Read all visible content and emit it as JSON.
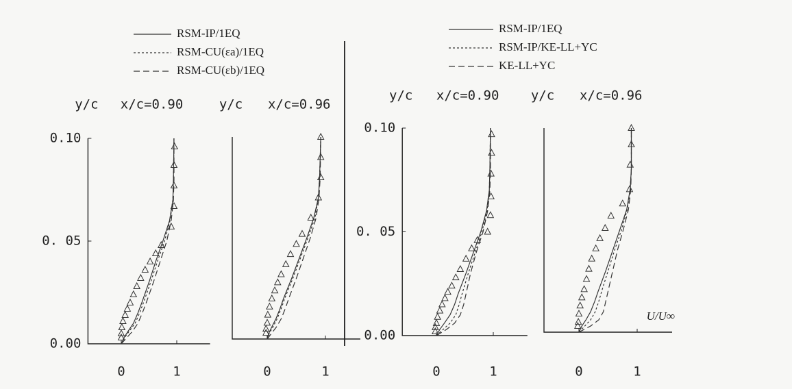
{
  "chart_data": [
    {
      "type": "line",
      "xlim": [
        -0.6,
        1.6
      ],
      "xticks": [
        0,
        1
      ],
      "ylim": [
        0,
        0.1
      ],
      "yticks": [
        {
          "value": 0,
          "label": "0.00"
        },
        {
          "value": 0.05,
          "label": "0. 05"
        },
        {
          "value": 0.1,
          "label": "0.10"
        }
      ],
      "color": "#333",
      "series": [
        {
          "name": "RSM-IP/1EQ",
          "dash": "solid"
        },
        {
          "name": "RSM-CU(εa)/1EQ",
          "dash": "dotted"
        },
        {
          "name": "RSM-CU(εb)/1EQ",
          "dash": "dashed"
        }
      ],
      "panels": [
        {
          "ylabel": "y/c",
          "title": "x/c=0.90",
          "y": [
            0,
            0.003,
            0.006,
            0.01,
            0.015,
            0.02,
            0.03,
            0.04,
            0.05,
            0.06,
            0.07,
            0.08,
            0.1
          ],
          "lines": [
            [
              0,
              0.05,
              0.12,
              0.22,
              0.3,
              0.37,
              0.5,
              0.62,
              0.75,
              0.87,
              0.93,
              0.94,
              0.95
            ],
            [
              0,
              0.06,
              0.14,
              0.25,
              0.33,
              0.4,
              0.53,
              0.65,
              0.78,
              0.88,
              0.93,
              0.94,
              0.95
            ],
            [
              0,
              0.1,
              0.2,
              0.3,
              0.38,
              0.45,
              0.58,
              0.7,
              0.82,
              0.9,
              0.94,
              0.95,
              0.95
            ]
          ],
          "markers": {
            "x": [
              0.96,
              0.95,
              0.95,
              0.95,
              0.9,
              0.72,
              0.62,
              0.52,
              0.43,
              0.35,
              0.28,
              0.22,
              0.16,
              0.11,
              0.07,
              0.03,
              0.01,
              0,
              0
            ],
            "y": [
              0.096,
              0.087,
              0.077,
              0.067,
              0.057,
              0.048,
              0.044,
              0.04,
              0.036,
              0.032,
              0.028,
              0.024,
              0.02,
              0.017,
              0.014,
              0.011,
              0.008,
              0.005,
              0.003
            ]
          }
        },
        {
          "ylabel": "y/c",
          "title": "x/c=0.96",
          "y": [
            0,
            0.003,
            0.006,
            0.01,
            0.015,
            0.02,
            0.03,
            0.04,
            0.05,
            0.06,
            0.07,
            0.08,
            0.1
          ],
          "lines": [
            [
              0,
              0.03,
              0.08,
              0.15,
              0.22,
              0.28,
              0.42,
              0.55,
              0.68,
              0.8,
              0.88,
              0.9,
              0.92
            ],
            [
              0,
              0.04,
              0.1,
              0.17,
              0.24,
              0.3,
              0.44,
              0.57,
              0.7,
              0.82,
              0.88,
              0.9,
              0.92
            ],
            [
              0,
              0.08,
              0.16,
              0.24,
              0.31,
              0.37,
              0.5,
              0.62,
              0.74,
              0.84,
              0.89,
              0.91,
              0.92
            ]
          ],
          "markers": {
            "x": [
              0.92,
              0.92,
              0.92,
              0.88,
              0.75,
              0.6,
              0.5,
              0.4,
              0.32,
              0.24,
              0.18,
              0.13,
              0.08,
              0.04,
              0.01,
              0,
              -0.02,
              -0.02
            ],
            "y": [
              0.1,
              0.09,
              0.08,
              0.07,
              0.06,
              0.052,
              0.047,
              0.042,
              0.037,
              0.032,
              0.028,
              0.024,
              0.02,
              0.016,
              0.012,
              0.008,
              0.005,
              0.003
            ]
          }
        }
      ]
    },
    {
      "type": "line",
      "xlim": [
        -0.6,
        1.6
      ],
      "xticks": [
        0,
        1
      ],
      "ylim": [
        0,
        0.1
      ],
      "yticks": [
        {
          "value": 0,
          "label": "0.00"
        },
        {
          "value": 0.05,
          "label": "0. 05"
        },
        {
          "value": 0.1,
          "label": "0.10"
        }
      ],
      "xlabel": "U/U∞",
      "color": "#333",
      "series": [
        {
          "name": "RSM-IP/1EQ",
          "dash": "solid"
        },
        {
          "name": "RSM-IP/KE-LL+YC",
          "dash": "dotted"
        },
        {
          "name": "KE-LL+YC",
          "dash": "dashed"
        }
      ],
      "panels": [
        {
          "ylabel": "y/c",
          "title": "x/c=0.90",
          "y": [
            0,
            0.003,
            0.006,
            0.01,
            0.015,
            0.02,
            0.03,
            0.04,
            0.05,
            0.06,
            0.07,
            0.08,
            0.1
          ],
          "lines": [
            [
              0,
              0.06,
              0.14,
              0.24,
              0.32,
              0.38,
              0.52,
              0.65,
              0.78,
              0.88,
              0.93,
              0.94,
              0.95
            ],
            [
              0,
              0.12,
              0.24,
              0.34,
              0.4,
              0.45,
              0.56,
              0.68,
              0.8,
              0.89,
              0.93,
              0.94,
              0.95
            ],
            [
              0,
              0.18,
              0.32,
              0.42,
              0.48,
              0.52,
              0.6,
              0.7,
              0.82,
              0.9,
              0.94,
              0.95,
              0.95
            ]
          ],
          "markers": {
            "x": [
              0.97,
              0.97,
              0.96,
              0.96,
              0.95,
              0.9,
              0.72,
              0.62,
              0.52,
              0.42,
              0.34,
              0.27,
              0.2,
              0.15,
              0.1,
              0.06,
              0.02,
              0,
              -0.02,
              -0.02
            ],
            "y": [
              0.097,
              0.088,
              0.078,
              0.067,
              0.058,
              0.05,
              0.046,
              0.042,
              0.037,
              0.032,
              0.028,
              0.024,
              0.021,
              0.018,
              0.015,
              0.012,
              0.009,
              0.006,
              0.004,
              0.002
            ]
          }
        },
        {
          "ylabel": "y/c",
          "title": "x/c=0.96",
          "y": [
            0,
            0.003,
            0.006,
            0.01,
            0.015,
            0.02,
            0.03,
            0.04,
            0.05,
            0.06,
            0.07,
            0.08,
            0.1
          ],
          "lines": [
            [
              0,
              0.05,
              0.12,
              0.2,
              0.27,
              0.33,
              0.46,
              0.58,
              0.7,
              0.82,
              0.88,
              0.9,
              0.9
            ],
            [
              0,
              0.1,
              0.2,
              0.28,
              0.34,
              0.39,
              0.5,
              0.61,
              0.73,
              0.83,
              0.88,
              0.9,
              0.9
            ],
            [
              0,
              0.2,
              0.34,
              0.42,
              0.46,
              0.5,
              0.58,
              0.66,
              0.76,
              0.85,
              0.89,
              0.9,
              0.9
            ]
          ],
          "markers": {
            "x": [
              0.9,
              0.9,
              0.88,
              0.87,
              0.75,
              0.55,
              0.45,
              0.36,
              0.29,
              0.22,
              0.17,
              0.13,
              0.09,
              0.05,
              0.02,
              0,
              -0.01,
              -0.02
            ],
            "y": [
              0.1,
              0.092,
              0.082,
              0.07,
              0.063,
              0.057,
              0.051,
              0.046,
              0.041,
              0.036,
              0.031,
              0.026,
              0.021,
              0.017,
              0.013,
              0.009,
              0.005,
              0.003
            ]
          }
        }
      ]
    }
  ]
}
